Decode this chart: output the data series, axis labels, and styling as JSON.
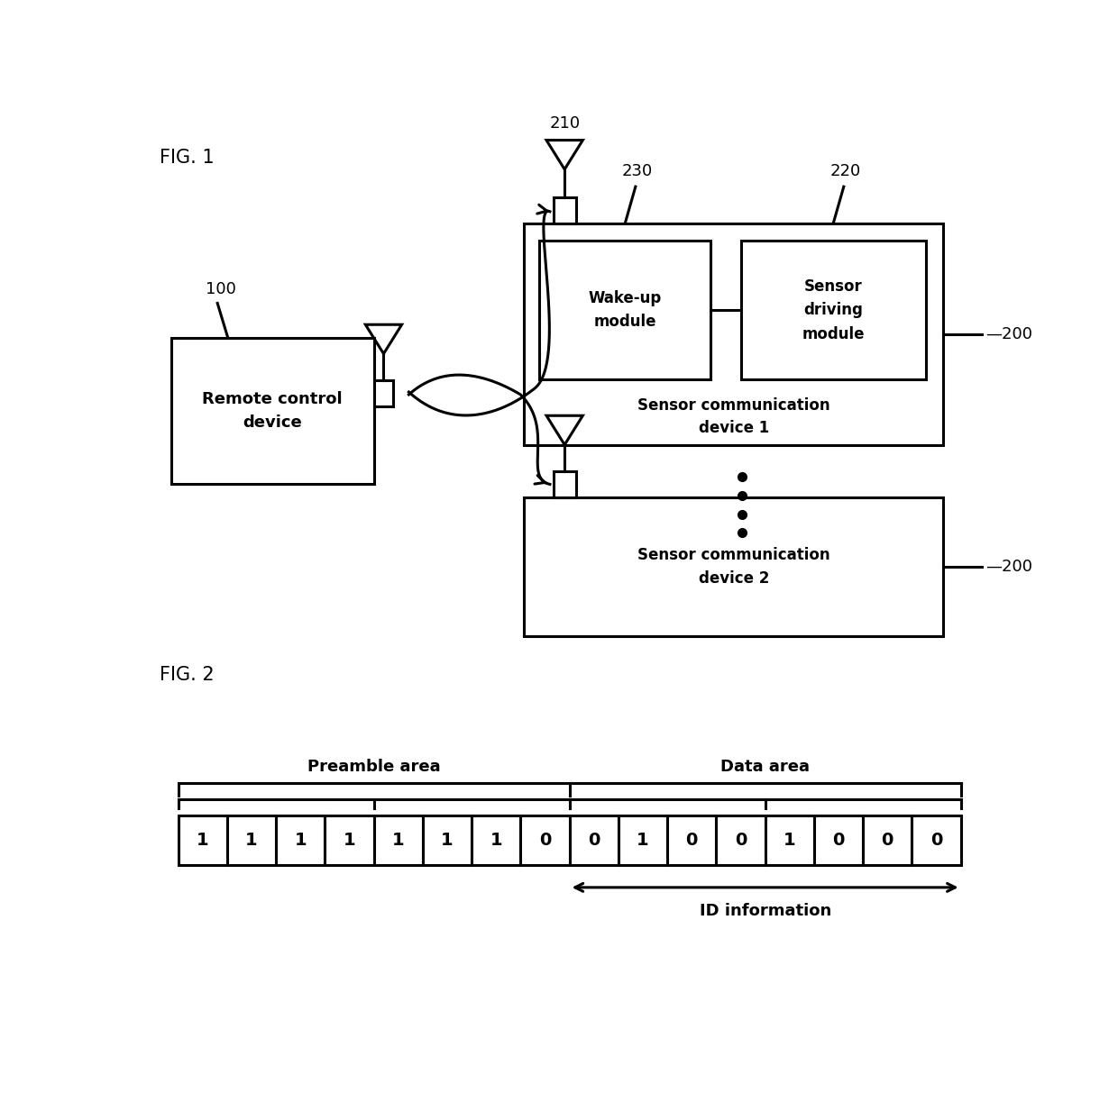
{
  "fig_label1": "FIG. 1",
  "fig_label2": "FIG. 2",
  "bg_color": "#ffffff",
  "label_100": "100",
  "label_200": "200",
  "label_200b": "200",
  "label_210": "210",
  "label_220": "220",
  "label_230": "230",
  "remote_control_text": "Remote control\ndevice",
  "sensor_comm1_text": "Sensor communication\ndevice 1",
  "sensor_comm2_text": "Sensor communication\ndevice 2",
  "wakeup_text": "Wake-up\nmodule",
  "sensor_driving_text": "Sensor\ndriving\nmodule",
  "preamble_area_text": "Preamble area",
  "data_area_text": "Data area",
  "id_info_text": "ID information",
  "bits": [
    1,
    1,
    1,
    1,
    1,
    1,
    1,
    0,
    0,
    1,
    0,
    0,
    1,
    0,
    0,
    0
  ]
}
